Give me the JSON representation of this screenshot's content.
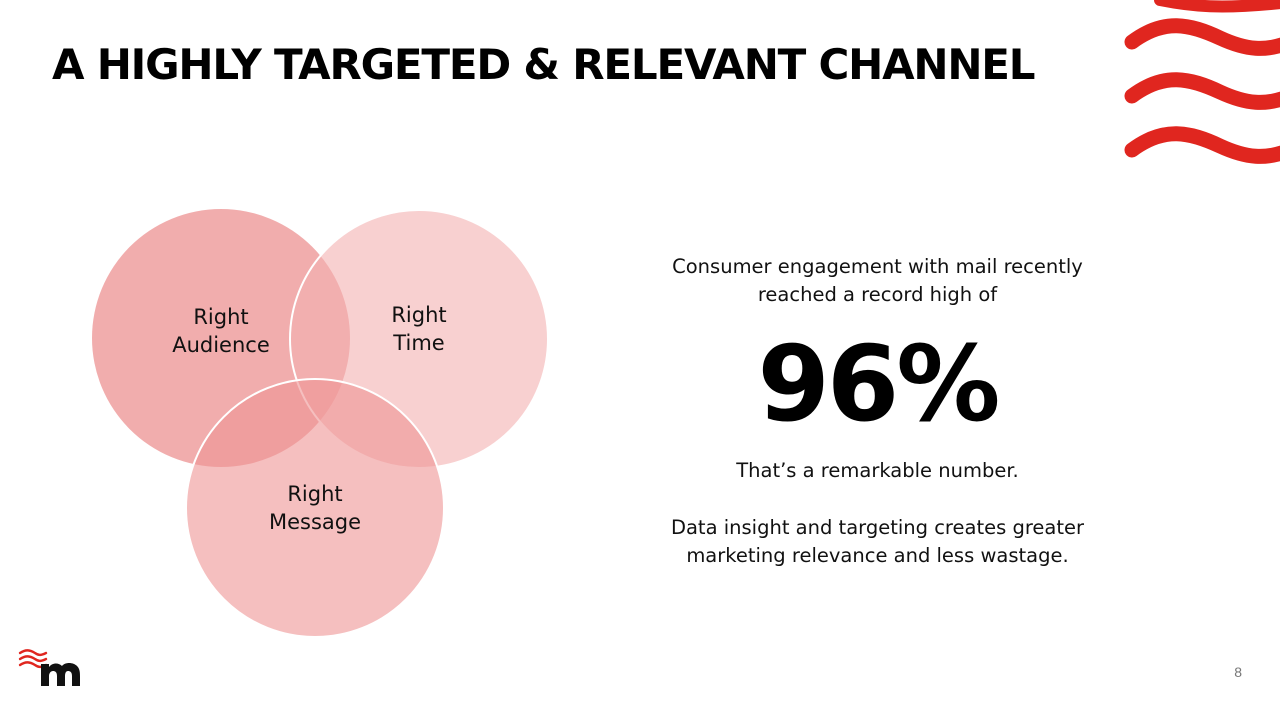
{
  "slide": {
    "title": "A HIGHLY TARGETED & RELEVANT CHANNEL",
    "page_number": "8"
  },
  "venn": {
    "circles": [
      {
        "line1": "Right",
        "line2": "Audience",
        "color": "#ec8d8d"
      },
      {
        "line1": "Right",
        "line2": "Time",
        "color": "#f5b5b5"
      },
      {
        "line1": "Right",
        "line2": "Message",
        "color": "#f29e9e"
      }
    ]
  },
  "info": {
    "intro": "Consumer engagement with mail recently reached a record high of",
    "stat": "96%",
    "stat_suffix": ".",
    "remark": "That’s a remarkable number.",
    "conclusion": "Data insight and targeting creates greater marketing relevance and less wastage."
  },
  "colors": {
    "accent_red": "#e0261f",
    "logo_text": "#111111"
  },
  "icons": {
    "corner_decoration": "red-waves-icon",
    "brand_logo": "m-logo-icon"
  }
}
